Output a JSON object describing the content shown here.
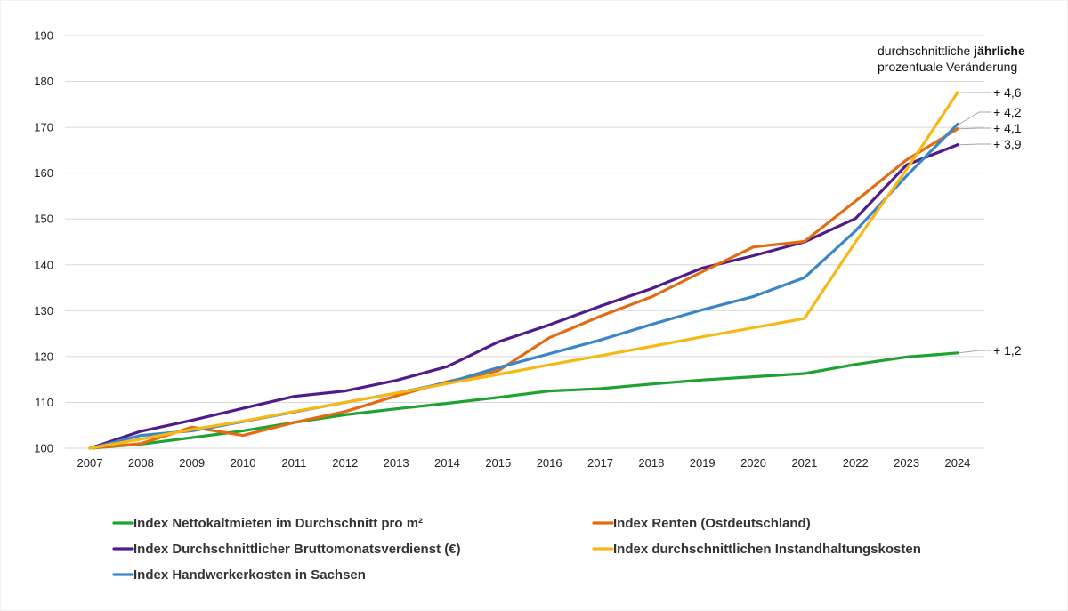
{
  "chart_data": {
    "type": "line",
    "title": "",
    "xlabel": "",
    "ylabel": "",
    "ylim": [
      100,
      190
    ],
    "yticks": [
      100,
      110,
      120,
      130,
      140,
      150,
      160,
      170,
      180,
      190
    ],
    "grid": true,
    "legend_position": "bottom",
    "categories": [
      "2007",
      "2008",
      "2009",
      "2010",
      "2011",
      "2012",
      "2013",
      "2014",
      "2015",
      "2016",
      "2017",
      "2018",
      "2019",
      "2020",
      "2021",
      "2022",
      "2023",
      "2024"
    ],
    "series": [
      {
        "key": "mieten",
        "name": "Index Nettokaltmieten im Durchschnitt pro m²",
        "color": "#1ea232",
        "values": [
          100,
          100.9,
          102.3,
          103.8,
          105.6,
          107.3,
          108.6,
          109.8,
          111.1,
          112.5,
          113.0,
          114.0,
          114.9,
          115.6,
          116.3,
          118.3,
          119.9,
          120.8
        ],
        "change_label": "+ 1,2"
      },
      {
        "key": "renten",
        "name": "Index Renten (Ostdeutschland)",
        "color": "#e36c13",
        "values": [
          100,
          101.0,
          104.6,
          102.8,
          105.6,
          108.0,
          111.4,
          114.5,
          116.9,
          124.1,
          128.8,
          133.0,
          138.5,
          143.9,
          145.1,
          153.9,
          162.9,
          169.7
        ],
        "change_label": "+ 4,1"
      },
      {
        "key": "verdienst",
        "name": "Index Durchschnittlicher Bruttomonatsverdienst (€)",
        "color": "#4e1d8a",
        "values": [
          100,
          103.7,
          106.1,
          108.7,
          111.3,
          112.5,
          114.8,
          117.8,
          123.2,
          126.9,
          131.0,
          134.8,
          139.3,
          142.0,
          145.0,
          150.1,
          161.8,
          166.2
        ],
        "change_label": "+ 3,9"
      },
      {
        "key": "instandhaltung",
        "name": "Index durchschnittlichen Instandhaltungskosten",
        "color": "#f7b813",
        "values": [
          100,
          102.0,
          104.1,
          105.9,
          108.0,
          110.0,
          112.0,
          114.1,
          116.1,
          118.2,
          120.2,
          122.2,
          124.3,
          126.3,
          128.3,
          145.0,
          160.8,
          177.6
        ],
        "change_label": "+ 4,6"
      },
      {
        "key": "handwerker",
        "name": "Index Handwerkerkosten in Sachsen",
        "color": "#3b86c6",
        "values": [
          100,
          102.8,
          103.8,
          105.8,
          107.9,
          110.0,
          112.0,
          114.3,
          117.6,
          120.6,
          123.6,
          127.0,
          130.2,
          133.1,
          137.2,
          147.4,
          159.4,
          170.7
        ],
        "change_label": "+ 4,2"
      }
    ],
    "annotation_title_part1": "durchschnittliche ",
    "annotation_title_bold": "jährliche",
    "annotation_title_line2": "prozentuale Veränderung"
  }
}
